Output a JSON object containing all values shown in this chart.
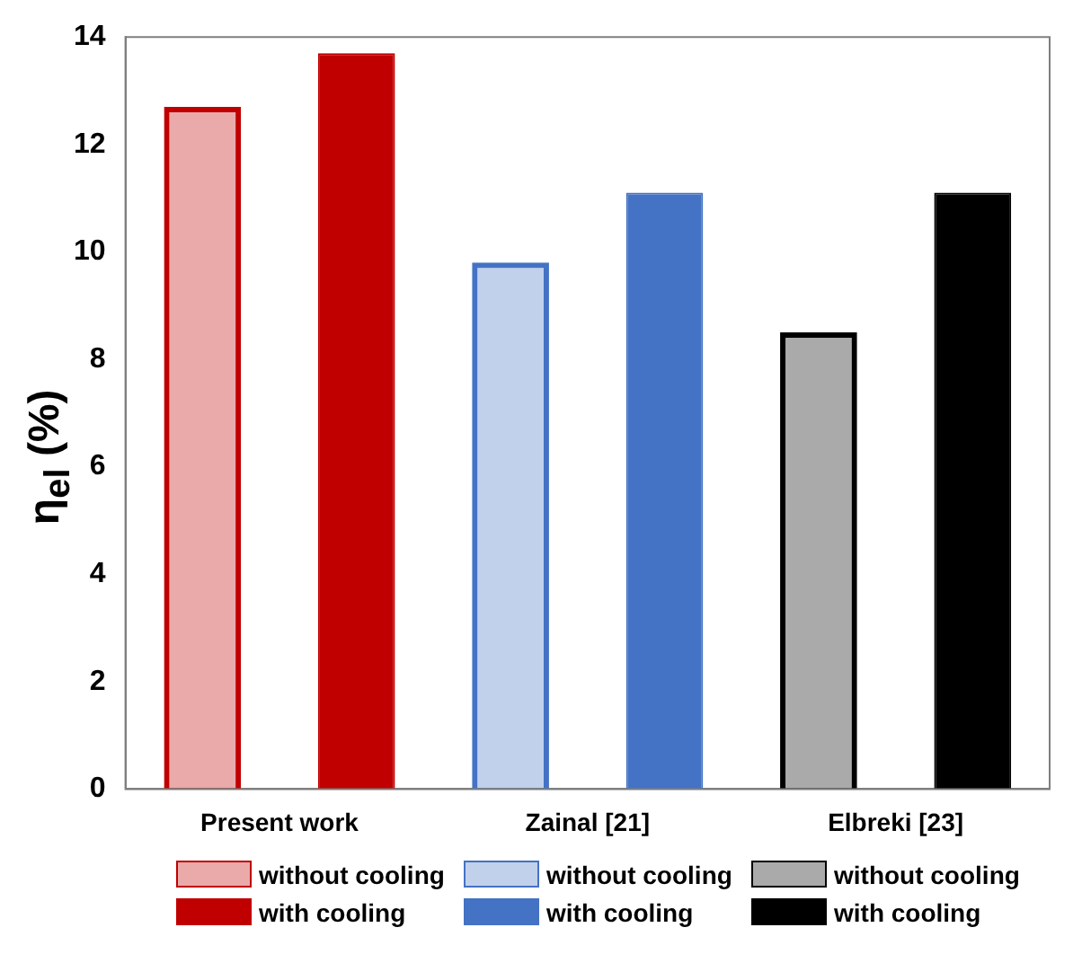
{
  "chart_data": {
    "type": "bar",
    "ylabel": "η$_{el}$ (%)",
    "categories": [
      "Present work",
      "Zainal [21]",
      "Elbreki [23]"
    ],
    "series": [
      {
        "name": "without cooling",
        "color": "#c00000",
        "values": [
          12.7,
          null,
          null
        ]
      },
      {
        "name": "with cooling",
        "color": "#c00000",
        "values": [
          13.7,
          null,
          null
        ]
      },
      {
        "name": "without cooling",
        "color": "#4472c4",
        "values": [
          null,
          9.8,
          null
        ]
      },
      {
        "name": "with cooling",
        "color": "#4472c4",
        "values": [
          null,
          11.1,
          null
        ]
      },
      {
        "name": "without cooling",
        "color": "#000000",
        "values": [
          null,
          null,
          8.5
        ]
      },
      {
        "name": "with cooling",
        "color": "#000000",
        "values": [
          null,
          null,
          11.1
        ]
      }
    ],
    "ylim": [
      0,
      14
    ],
    "yticks": [
      0,
      2,
      4,
      6,
      8,
      10,
      12,
      14
    ],
    "grid": false,
    "legend": "bottom"
  }
}
